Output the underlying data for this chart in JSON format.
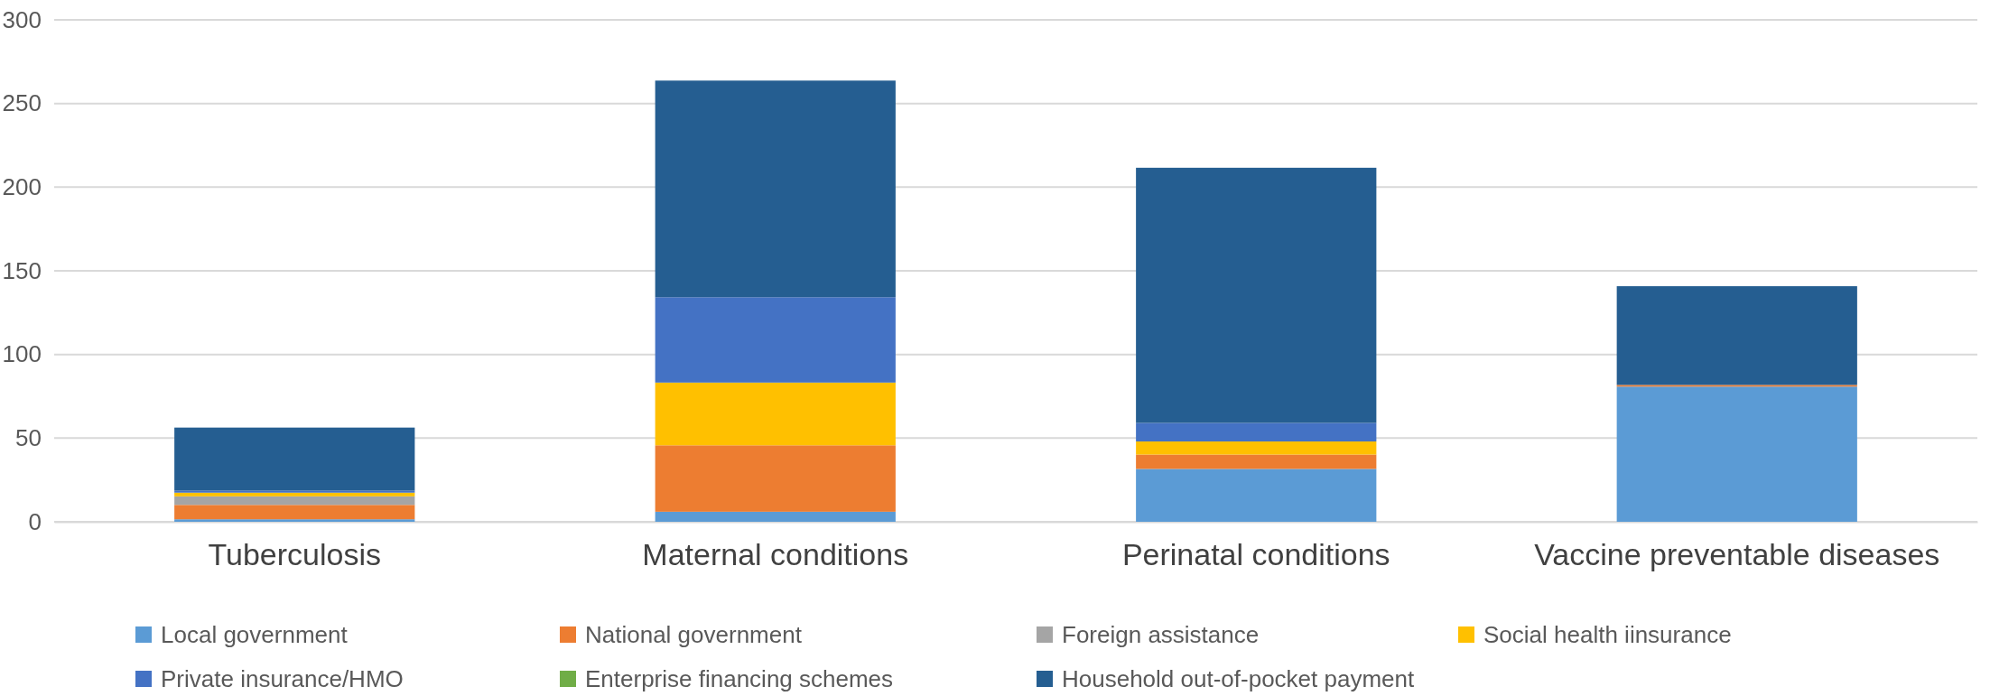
{
  "chart_data": {
    "type": "bar",
    "stacked": true,
    "categories": [
      "Tuberculosis",
      "Maternal conditions",
      "Perinatal conditions",
      "Vaccine preventable diseases"
    ],
    "series": [
      {
        "name": "Local government",
        "color": "#5b9bd5",
        "values": [
          1.5,
          6.0,
          31.6,
          80.8
        ]
      },
      {
        "name": "National government",
        "color": "#ed7d31",
        "values": [
          8.6,
          39.7,
          8.6,
          1.0
        ]
      },
      {
        "name": "Foreign assistance",
        "color": "#a5a5a5",
        "values": [
          5.1,
          0,
          0,
          0
        ]
      },
      {
        "name": "Social health iinsurance",
        "color": "#ffc000",
        "values": [
          2.2,
          37.5,
          7.8,
          0
        ]
      },
      {
        "name": "Private insurance/HMO",
        "color": "#4472c4",
        "values": [
          1.2,
          51.0,
          11.1,
          0
        ]
      },
      {
        "name": "Enterprise financing schemes",
        "color": "#70ad47",
        "values": [
          0,
          0,
          0,
          0
        ]
      },
      {
        "name": "Household out-of-pocket payment",
        "color": "#255e91",
        "values": [
          37.7,
          129.5,
          152.5,
          59.0
        ]
      }
    ],
    "ylim": [
      0,
      300
    ],
    "yticks": [
      0,
      50,
      100,
      150,
      200,
      250,
      300
    ],
    "grid": "y",
    "legend": "bottom"
  }
}
